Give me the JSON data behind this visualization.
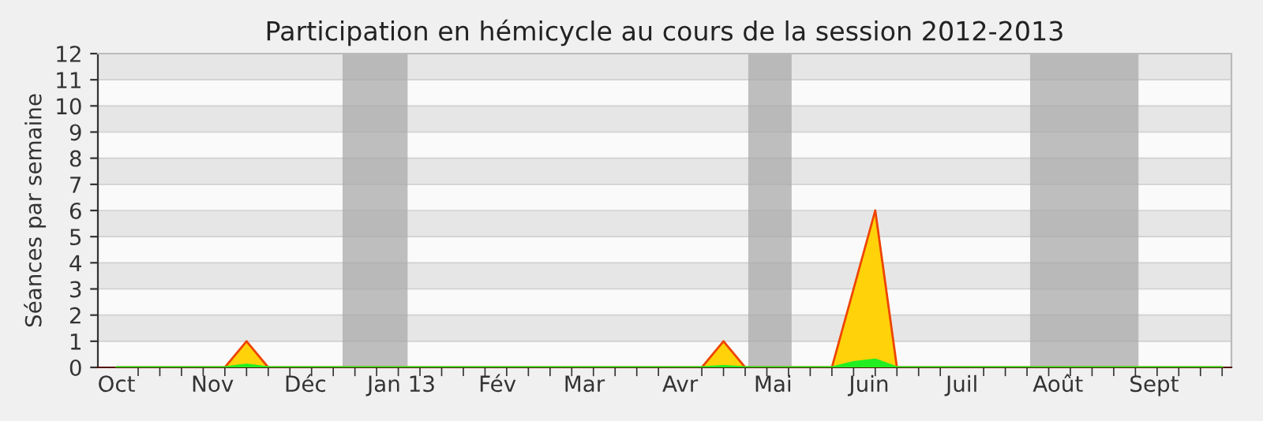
{
  "chart_data": {
    "type": "area",
    "title": "Participation en hémicycle au cours de la session 2012-2013",
    "ylabel": "Séances par semaine",
    "x": [
      "2012-10-01",
      "2012-10-08",
      "2012-10-15",
      "2012-10-22",
      "2012-10-29",
      "2012-11-05",
      "2012-11-12",
      "2012-11-19",
      "2012-11-26",
      "2012-12-03",
      "2012-12-10",
      "2012-12-17",
      "2012-12-24",
      "2012-12-31",
      "2013-01-07",
      "2013-01-14",
      "2013-01-21",
      "2013-01-28",
      "2013-02-04",
      "2013-02-11",
      "2013-02-18",
      "2013-02-25",
      "2013-03-04",
      "2013-03-11",
      "2013-03-18",
      "2013-03-25",
      "2013-04-01",
      "2013-04-08",
      "2013-04-15",
      "2013-04-22",
      "2013-04-29",
      "2013-05-06",
      "2013-05-13",
      "2013-05-20",
      "2013-05-27",
      "2013-06-03",
      "2013-06-10",
      "2013-06-17",
      "2013-06-24",
      "2013-07-01",
      "2013-07-08",
      "2013-07-15",
      "2013-07-22",
      "2013-07-29",
      "2013-08-05",
      "2013-08-12",
      "2013-08-19",
      "2013-08-26",
      "2013-09-02",
      "2013-09-09",
      "2013-09-16",
      "2013-09-23"
    ],
    "series": [
      {
        "color": "#ffd20a",
        "values": [
          0,
          0,
          0,
          0,
          0,
          0,
          1,
          0,
          0,
          0,
          0,
          0,
          0,
          0,
          0,
          0,
          0,
          0,
          0,
          0,
          0,
          0,
          0,
          0,
          0,
          0,
          0,
          0,
          1,
          0,
          0,
          0,
          0,
          0,
          3,
          6,
          0,
          0,
          0,
          0,
          0,
          0,
          0,
          0,
          0,
          0,
          0,
          0,
          0,
          0,
          0,
          0
        ]
      },
      {
        "color": "#22ee22",
        "values": [
          0,
          0,
          0,
          0,
          0,
          0,
          0.1,
          0,
          0,
          0,
          0,
          0,
          0,
          0,
          0,
          0,
          0,
          0,
          0,
          0,
          0,
          0,
          0,
          0,
          0,
          0,
          0,
          0,
          0.05,
          0,
          0,
          0,
          0,
          0,
          0.2,
          0.3,
          0,
          0,
          0,
          0,
          0,
          0,
          0,
          0,
          0,
          0,
          0,
          0,
          0,
          0,
          0,
          0
        ]
      }
    ],
    "xlim": [
      "2012-09-25",
      "2013-09-26"
    ],
    "ylim": [
      0,
      12
    ],
    "yticks": [
      0,
      1,
      2,
      3,
      4,
      5,
      6,
      7,
      8,
      9,
      10,
      11,
      12
    ],
    "xticks": [
      {
        "value": "2012-10-01",
        "label": "Oct"
      },
      {
        "value": "2012-11-01",
        "label": "Nov"
      },
      {
        "value": "2012-12-01",
        "label": "Déc"
      },
      {
        "value": "2013-01-01",
        "label": "Jan 13"
      },
      {
        "value": "2013-02-01",
        "label": "Fév"
      },
      {
        "value": "2013-03-01",
        "label": "Mar"
      },
      {
        "value": "2013-04-01",
        "label": "Avr"
      },
      {
        "value": "2013-05-01",
        "label": "Mai"
      },
      {
        "value": "2013-06-01",
        "label": "Juin"
      },
      {
        "value": "2013-07-01",
        "label": "Juil"
      },
      {
        "value": "2013-08-01",
        "label": "Août"
      },
      {
        "value": "2013-09-01",
        "label": "Sept"
      }
    ],
    "bands": [
      {
        "axis": "x",
        "from": "2012-12-13",
        "to": "2013-01-03",
        "color": "#aaaaaa"
      },
      {
        "axis": "x",
        "from": "2013-04-23",
        "to": "2013-05-07",
        "color": "#aaaaaa"
      },
      {
        "axis": "x",
        "from": "2013-07-23",
        "to": "2013-08-27",
        "color": "#aaaaaa"
      }
    ],
    "grid": "y",
    "legend": false
  }
}
